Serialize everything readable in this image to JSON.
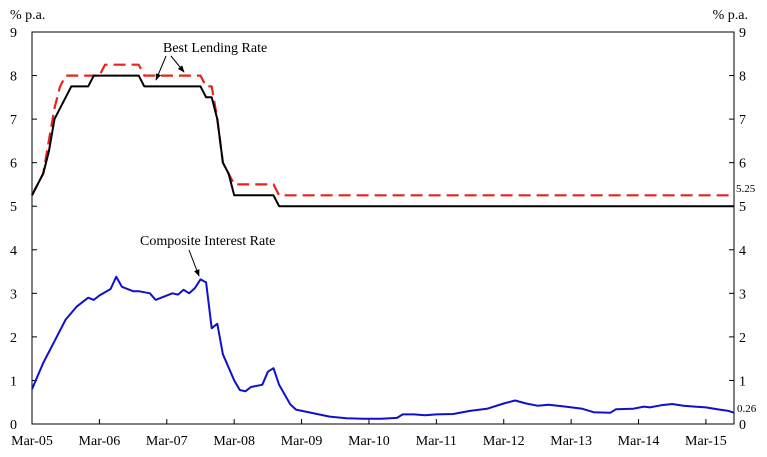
{
  "chart_data": {
    "type": "line",
    "y_unit_left": "% p.a.",
    "y_unit_right": "% p.a.",
    "ylim": [
      0,
      9
    ],
    "yticks": [
      0,
      1,
      2,
      3,
      4,
      5,
      6,
      7,
      8,
      9
    ],
    "xlim": [
      "2005-03",
      "2015-08"
    ],
    "x_tick_labels": [
      "Mar-05",
      "Mar-06",
      "Mar-07",
      "Mar-08",
      "Mar-09",
      "Mar-10",
      "Mar-11",
      "Mar-12",
      "Mar-13",
      "Mar-14",
      "Mar-15"
    ],
    "x_ticks": [
      "2005-03",
      "2006-03",
      "2007-03",
      "2008-03",
      "2009-03",
      "2010-03",
      "2011-03",
      "2012-03",
      "2013-03",
      "2014-03",
      "2015-03"
    ],
    "grid": false,
    "colors": {
      "blr_upper": "#e8231e",
      "blr_lower": "#000000",
      "composite": "#1010cc"
    },
    "series": [
      {
        "style": "dashed",
        "points": [
          [
            "2005-03",
            5.25
          ],
          [
            "2005-05",
            5.75
          ],
          [
            "2005-06",
            6.5
          ],
          [
            "2005-07",
            7.25
          ],
          [
            "2005-08",
            7.75
          ],
          [
            "2005-09",
            8.0
          ],
          [
            "2006-03",
            8.0
          ],
          [
            "2006-04",
            8.25
          ],
          [
            "2006-10",
            8.25
          ],
          [
            "2006-11",
            8.0
          ],
          [
            "2007-09",
            8.0
          ],
          [
            "2007-10",
            7.75
          ],
          [
            "2007-11",
            7.75
          ],
          [
            "2007-12",
            7.0
          ],
          [
            "2008-01",
            6.0
          ],
          [
            "2008-03",
            5.5
          ],
          [
            "2008-10",
            5.5
          ],
          [
            "2008-11",
            5.25
          ],
          [
            "2015-08",
            5.25
          ]
        ]
      },
      {
        "style": "solid",
        "points": [
          [
            "2005-03",
            5.25
          ],
          [
            "2005-05",
            5.75
          ],
          [
            "2005-06",
            6.25
          ],
          [
            "2005-07",
            7.0
          ],
          [
            "2005-09",
            7.5
          ],
          [
            "2005-10",
            7.75
          ],
          [
            "2006-01",
            7.75
          ],
          [
            "2006-02",
            8.0
          ],
          [
            "2006-10",
            8.0
          ],
          [
            "2006-11",
            7.75
          ],
          [
            "2007-09",
            7.75
          ],
          [
            "2007-10",
            7.5
          ],
          [
            "2007-11",
            7.5
          ],
          [
            "2007-12",
            7.0
          ],
          [
            "2008-01",
            6.0
          ],
          [
            "2008-02",
            5.75
          ],
          [
            "2008-03",
            5.25
          ],
          [
            "2008-10",
            5.25
          ],
          [
            "2008-11",
            5.0
          ],
          [
            "2015-08",
            5.0
          ]
        ]
      },
      {
        "style": "solid",
        "points": [
          [
            "2005-03",
            0.8
          ],
          [
            "2005-05",
            1.4
          ],
          [
            "2005-07",
            1.9
          ],
          [
            "2005-09",
            2.4
          ],
          [
            "2005-11",
            2.7
          ],
          [
            "2006-01",
            2.9
          ],
          [
            "2006-02",
            2.85
          ],
          [
            "2006-03",
            2.95
          ],
          [
            "2006-05",
            3.1
          ],
          [
            "2006-06",
            3.38
          ],
          [
            "2006-07",
            3.15
          ],
          [
            "2006-09",
            3.05
          ],
          [
            "2006-10",
            3.05
          ],
          [
            "2006-12",
            3.0
          ],
          [
            "2007-01",
            2.85
          ],
          [
            "2007-02",
            2.9
          ],
          [
            "2007-04",
            3.0
          ],
          [
            "2007-05",
            2.97
          ],
          [
            "2007-06",
            3.08
          ],
          [
            "2007-07",
            3.0
          ],
          [
            "2007-08",
            3.12
          ],
          [
            "2007-09",
            3.32
          ],
          [
            "2007-10",
            3.25
          ],
          [
            "2007-11",
            2.2
          ],
          [
            "2007-12",
            2.3
          ],
          [
            "2008-01",
            1.6
          ],
          [
            "2008-03",
            1.0
          ],
          [
            "2008-04",
            0.78
          ],
          [
            "2008-05",
            0.75
          ],
          [
            "2008-06",
            0.85
          ],
          [
            "2008-08",
            0.9
          ],
          [
            "2008-09",
            1.2
          ],
          [
            "2008-10",
            1.28
          ],
          [
            "2008-11",
            0.9
          ],
          [
            "2009-01",
            0.45
          ],
          [
            "2009-02",
            0.33
          ],
          [
            "2009-05",
            0.25
          ],
          [
            "2009-08",
            0.17
          ],
          [
            "2009-11",
            0.13
          ],
          [
            "2010-02",
            0.12
          ],
          [
            "2010-05",
            0.12
          ],
          [
            "2010-08",
            0.14
          ],
          [
            "2010-09",
            0.22
          ],
          [
            "2010-11",
            0.22
          ],
          [
            "2011-01",
            0.2
          ],
          [
            "2011-03",
            0.22
          ],
          [
            "2011-06",
            0.23
          ],
          [
            "2011-09",
            0.3
          ],
          [
            "2011-12",
            0.35
          ],
          [
            "2012-03",
            0.47
          ],
          [
            "2012-05",
            0.54
          ],
          [
            "2012-07",
            0.47
          ],
          [
            "2012-09",
            0.42
          ],
          [
            "2012-11",
            0.44
          ],
          [
            "2013-02",
            0.4
          ],
          [
            "2013-05",
            0.35
          ],
          [
            "2013-07",
            0.27
          ],
          [
            "2013-10",
            0.26
          ],
          [
            "2013-11",
            0.34
          ],
          [
            "2014-02",
            0.35
          ],
          [
            "2014-04",
            0.4
          ],
          [
            "2014-05",
            0.38
          ],
          [
            "2014-07",
            0.43
          ],
          [
            "2014-09",
            0.46
          ],
          [
            "2014-11",
            0.42
          ],
          [
            "2015-01",
            0.4
          ],
          [
            "2015-03",
            0.38
          ],
          [
            "2015-05",
            0.34
          ],
          [
            "2015-07",
            0.3
          ],
          [
            "2015-08",
            0.26
          ]
        ]
      }
    ],
    "annotations": [
      {
        "text": "Best Lending Rate"
      },
      {
        "text": "Composite Interest Rate"
      }
    ],
    "end_labels": [
      "5.25",
      "0.26"
    ]
  }
}
